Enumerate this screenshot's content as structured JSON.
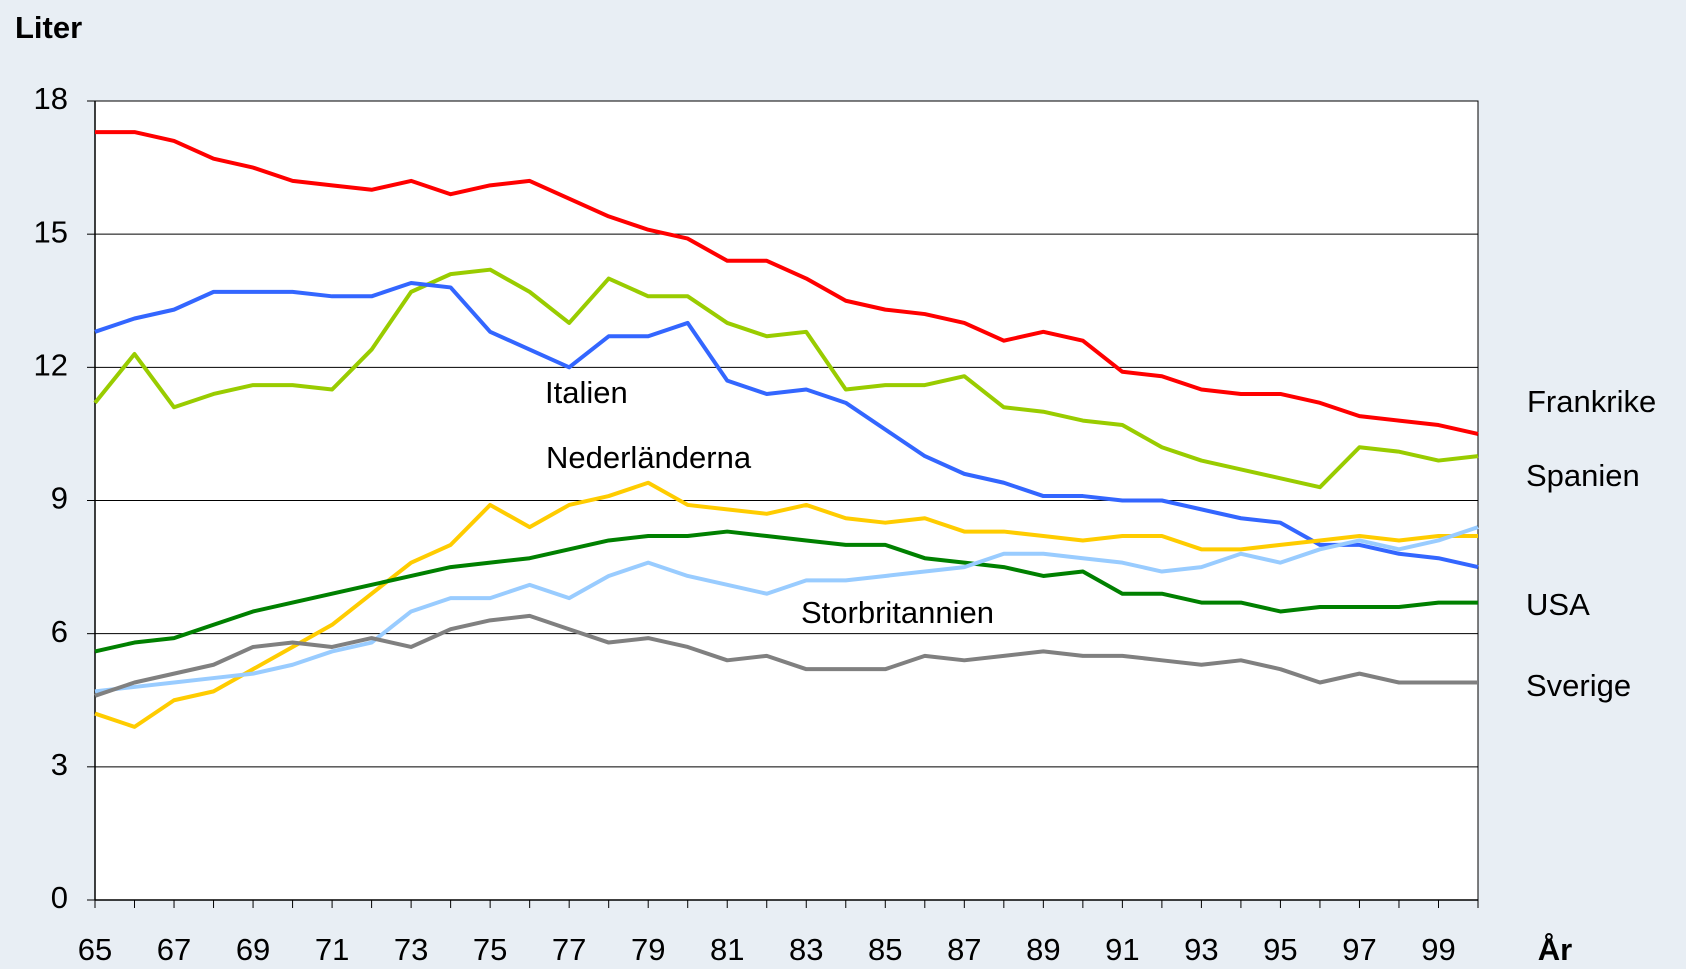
{
  "chart_data": {
    "type": "line",
    "y_label": "Liter",
    "x_label": "År",
    "categories": [
      "65",
      null,
      "67",
      null,
      "69",
      null,
      "71",
      null,
      "73",
      null,
      "75",
      null,
      "77",
      null,
      "79",
      null,
      "81",
      null,
      "83",
      null,
      "85",
      null,
      "87",
      null,
      "89",
      null,
      "91",
      null,
      "93",
      null,
      "95",
      null,
      "97",
      null,
      "99",
      null
    ],
    "ylim": [
      0,
      18
    ],
    "yticks": [
      0,
      3,
      6,
      9,
      12,
      15,
      18
    ],
    "grid": true,
    "series": [
      {
        "name": "Frankrike",
        "color": "#ff0000",
        "values": [
          17.3,
          17.3,
          17.1,
          16.7,
          16.5,
          16.2,
          16.1,
          16.0,
          16.2,
          15.9,
          16.1,
          16.2,
          15.8,
          15.4,
          15.1,
          14.9,
          14.4,
          14.4,
          14.0,
          13.5,
          13.3,
          13.2,
          13.0,
          12.6,
          12.8,
          12.6,
          11.9,
          11.8,
          11.5,
          11.4,
          11.4,
          11.2,
          10.9,
          10.8,
          10.7,
          10.5
        ]
      },
      {
        "name": "Spanien",
        "color": "#99cc00",
        "values": [
          11.2,
          12.3,
          11.1,
          11.4,
          11.6,
          11.6,
          11.5,
          12.4,
          13.7,
          14.1,
          14.2,
          13.7,
          13.0,
          14.0,
          13.6,
          13.6,
          13.0,
          12.7,
          12.8,
          11.5,
          11.6,
          11.6,
          11.8,
          11.1,
          11.0,
          10.8,
          10.7,
          10.2,
          9.9,
          9.7,
          9.5,
          9.3,
          10.2,
          10.1,
          9.9,
          10.0
        ]
      },
      {
        "name": "Italien",
        "color": "#3366ff",
        "values": [
          12.8,
          13.1,
          13.3,
          13.7,
          13.7,
          13.7,
          13.6,
          13.6,
          13.9,
          13.8,
          12.8,
          12.4,
          12.0,
          12.7,
          12.7,
          13.0,
          11.7,
          11.4,
          11.5,
          11.2,
          10.6,
          10.0,
          9.6,
          9.4,
          9.1,
          9.1,
          9.0,
          9.0,
          8.8,
          8.6,
          8.5,
          8.0,
          8.0,
          7.8,
          7.7,
          7.5
        ]
      },
      {
        "name": "Nederländerna",
        "color": "#ffcc00",
        "values": [
          4.2,
          3.9,
          4.5,
          4.7,
          5.2,
          5.7,
          6.2,
          6.9,
          7.6,
          8.0,
          8.9,
          8.4,
          8.9,
          9.1,
          9.4,
          8.9,
          8.8,
          8.7,
          8.9,
          8.6,
          8.5,
          8.6,
          8.3,
          8.3,
          8.2,
          8.1,
          8.2,
          8.2,
          7.9,
          7.9,
          8.0,
          8.1,
          8.2,
          8.1,
          8.2,
          8.2
        ]
      },
      {
        "name": "USA",
        "color": "#008000",
        "values": [
          5.6,
          5.8,
          5.9,
          6.2,
          6.5,
          6.7,
          6.9,
          7.1,
          7.3,
          7.5,
          7.6,
          7.7,
          7.9,
          8.1,
          8.2,
          8.2,
          8.3,
          8.2,
          8.1,
          8.0,
          8.0,
          7.7,
          7.6,
          7.5,
          7.3,
          7.4,
          6.9,
          6.9,
          6.7,
          6.7,
          6.5,
          6.6,
          6.6,
          6.6,
          6.7,
          6.7
        ]
      },
      {
        "name": "Storbritannien",
        "color": "#99ccff",
        "values": [
          4.7,
          4.8,
          4.9,
          5.0,
          5.1,
          5.3,
          5.6,
          5.8,
          6.5,
          6.8,
          6.8,
          7.1,
          6.8,
          7.3,
          7.6,
          7.3,
          7.1,
          6.9,
          7.2,
          7.2,
          7.3,
          7.4,
          7.5,
          7.8,
          7.8,
          7.7,
          7.6,
          7.4,
          7.5,
          7.8,
          7.6,
          7.9,
          8.1,
          7.9,
          8.1,
          8.4
        ]
      },
      {
        "name": "Sverige",
        "color": "#808080",
        "values": [
          4.6,
          4.9,
          5.1,
          5.3,
          5.7,
          5.8,
          5.7,
          5.9,
          5.7,
          6.1,
          6.3,
          6.4,
          6.1,
          5.8,
          5.9,
          5.7,
          5.4,
          5.5,
          5.2,
          5.2,
          5.2,
          5.5,
          5.4,
          5.5,
          5.6,
          5.5,
          5.5,
          5.4,
          5.3,
          5.4,
          5.2,
          4.9,
          5.1,
          4.9,
          4.9,
          4.9
        ]
      }
    ]
  }
}
